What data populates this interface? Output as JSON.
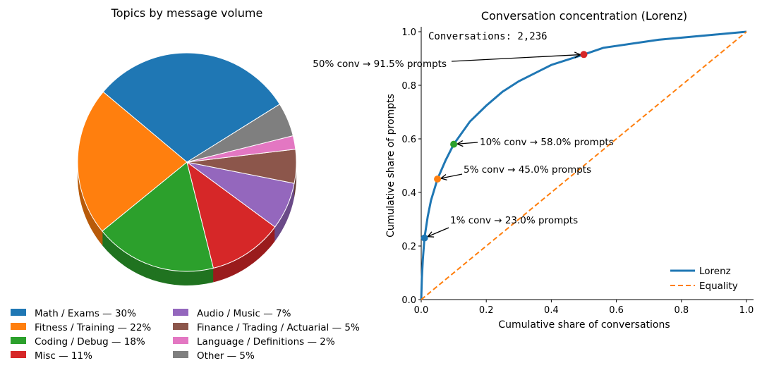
{
  "chart_data": [
    {
      "type": "pie",
      "title": "Topics by message volume",
      "start_angle_deg": 32,
      "direction": "counterclockwise",
      "shadow": true,
      "slices": [
        {
          "label": "Math / Exams — 30%",
          "value": 30,
          "color": "#1f77b4"
        },
        {
          "label": "Fitness / Training — 22%",
          "value": 22,
          "color": "#ff7f0e"
        },
        {
          "label": "Coding / Debug — 18%",
          "value": 18,
          "color": "#2ca02c"
        },
        {
          "label": "Misc — 11%",
          "value": 11,
          "color": "#d62728"
        },
        {
          "label": "Audio / Music — 7%",
          "value": 7,
          "color": "#9467bd"
        },
        {
          "label": "Finance / Trading / Actuarial — 5%",
          "value": 5,
          "color": "#8c564b"
        },
        {
          "label": "Language / Definitions — 2%",
          "value": 2,
          "color": "#e377c2"
        },
        {
          "label": "Other — 5%",
          "value": 5,
          "color": "#7f7f7f"
        }
      ],
      "legend_placement": "bottom"
    },
    {
      "type": "line",
      "title": "Conversation concentration (Lorenz)",
      "xlabel": "Cumulative share of conversations",
      "ylabel": "Cumulative share of prompts",
      "xlim": [
        0,
        1.0
      ],
      "ylim": [
        0,
        1.0
      ],
      "xticks": [
        "0.0",
        "0.2",
        "0.4",
        "0.6",
        "0.8",
        "1.0"
      ],
      "yticks": [
        "0.0",
        "0.2",
        "0.4",
        "0.6",
        "0.8",
        "1.0"
      ],
      "info_text": "Conversations: 2,236",
      "series": [
        {
          "name": "Lorenz",
          "color": "#1f77b4",
          "style": "solid",
          "x": [
            0,
            0.002,
            0.005,
            0.01,
            0.02,
            0.03,
            0.05,
            0.075,
            0.1,
            0.15,
            0.2,
            0.25,
            0.3,
            0.4,
            0.5,
            0.56,
            0.73,
            1.0
          ],
          "y": [
            0,
            0.08,
            0.15,
            0.23,
            0.31,
            0.37,
            0.45,
            0.52,
            0.58,
            0.665,
            0.724,
            0.776,
            0.815,
            0.876,
            0.915,
            0.94,
            0.97,
            1.0
          ]
        },
        {
          "name": "Equality",
          "color": "#ff7f0e",
          "style": "dashed",
          "x": [
            0,
            1
          ],
          "y": [
            0,
            1
          ]
        }
      ],
      "annotations": [
        {
          "text": "1% conv → 23.0% prompts",
          "x": 0.01,
          "y": 0.23,
          "color": "#1f77b4"
        },
        {
          "text": "5% conv → 45.0% prompts",
          "x": 0.05,
          "y": 0.45,
          "color": "#ff7f0e"
        },
        {
          "text": "10% conv → 58.0% prompts",
          "x": 0.1,
          "y": 0.58,
          "color": "#2ca02c"
        },
        {
          "text": "50% conv → 91.5% prompts",
          "x": 0.5,
          "y": 0.915,
          "color": "#d62728"
        }
      ],
      "legend_placement": "bottom-right"
    }
  ]
}
